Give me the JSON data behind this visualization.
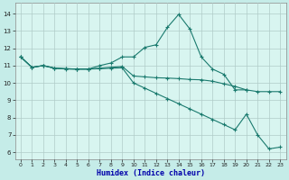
{
  "xlabel": "Humidex (Indice chaleur)",
  "bg_color": "#c5ece8",
  "plot_bg_color": "#d8f5f0",
  "grid_color": "#b0ccc8",
  "line_color": "#1a7a6e",
  "xlim": [
    -0.5,
    23.5
  ],
  "ylim": [
    5.6,
    14.6
  ],
  "xticks": [
    0,
    1,
    2,
    3,
    4,
    5,
    6,
    7,
    8,
    9,
    10,
    11,
    12,
    13,
    14,
    15,
    16,
    17,
    18,
    19,
    20,
    21,
    22,
    23
  ],
  "yticks": [
    6,
    7,
    8,
    9,
    10,
    11,
    12,
    13,
    14
  ],
  "lines": [
    {
      "x": [
        0,
        1,
        2,
        3,
        4,
        5,
        6,
        7,
        8,
        9,
        10,
        11,
        12,
        13,
        14,
        15,
        16,
        17,
        18,
        19,
        20
      ],
      "y": [
        11.5,
        10.9,
        11.0,
        10.85,
        10.8,
        10.8,
        10.8,
        11.0,
        11.15,
        11.5,
        11.5,
        12.05,
        12.2,
        13.2,
        13.95,
        13.1,
        11.5,
        10.8,
        10.5,
        9.6,
        9.6
      ]
    },
    {
      "x": [
        0,
        1,
        2,
        3,
        4,
        5,
        6,
        7,
        8,
        9,
        10,
        11,
        12,
        13,
        14,
        15,
        16,
        17,
        18,
        19,
        20,
        21,
        22,
        23
      ],
      "y": [
        11.5,
        10.9,
        11.0,
        10.85,
        10.82,
        10.8,
        10.8,
        10.85,
        10.9,
        10.95,
        10.4,
        10.35,
        10.3,
        10.28,
        10.25,
        10.2,
        10.18,
        10.1,
        9.95,
        9.8,
        9.6,
        9.5,
        9.5,
        9.5
      ]
    },
    {
      "x": [
        0,
        1,
        2,
        3,
        4,
        5,
        6,
        7,
        8,
        9,
        10,
        11,
        12,
        13,
        14,
        15,
        16,
        17,
        18,
        19,
        20,
        21,
        22,
        23
      ],
      "y": [
        11.5,
        10.9,
        11.0,
        10.85,
        10.82,
        10.8,
        10.8,
        10.82,
        10.85,
        10.87,
        10.0,
        9.7,
        9.4,
        9.1,
        8.8,
        8.5,
        8.2,
        7.9,
        7.6,
        7.3,
        8.2,
        7.0,
        6.2,
        6.3
      ]
    }
  ]
}
